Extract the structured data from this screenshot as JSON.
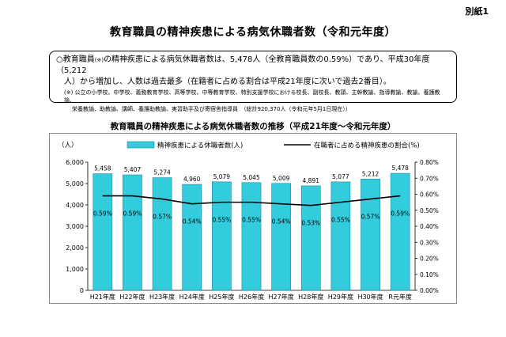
{
  "header": {
    "annex_label": "別紙1",
    "page_title": "教育職員の精神疾患による病気休職者数（令和元年度）"
  },
  "summary": {
    "line1_a": "○教育職員",
    "line1_mark": "(※)",
    "line1_b": "の精神疾患による病気休職者数は、5,478人（全教育職員数の0.59%）であり、平成30年度（5,212",
    "line2": "人）から増加し、人数は過去最多（在籍者に占める割合は平成21年度に次いで過去2番目）。",
    "note1": "(※) 公立の小学校、中学校、義務教育学校、高等学校、中等教育学校、特別支援学校における校長、副校長、教頭、主幹教諭、指導教諭、教諭、養護教諭、",
    "note2": "栄養教諭、助教諭、講師、養護助教諭、実習助手及び寄宿舎指導員　（総計920,370人（令和元年5月1日現在））"
  },
  "chart_data": {
    "type": "bar",
    "title": "教育職員の精神疾患による病気休職者数の推移（平成21年度～令和元年度）",
    "y_unit_label": "（人）",
    "categories": [
      "H21年度",
      "H22年度",
      "H23年度",
      "H24年度",
      "H25年度",
      "H26年度",
      "H27年度",
      "H28年度",
      "H29年度",
      "H30年度",
      "R元年度"
    ],
    "series": [
      {
        "name": "精神疾患による休職者数(人)",
        "kind": "bar",
        "axis": "left",
        "values": [
          5458,
          5407,
          5274,
          4960,
          5079,
          5045,
          5009,
          4891,
          5077,
          5212,
          5478
        ],
        "labels": [
          "5,458",
          "5,407",
          "5,274",
          "4,960",
          "5,079",
          "5,045",
          "5,009",
          "4,891",
          "5,077",
          "5,212",
          "5,478"
        ]
      },
      {
        "name": "在職者に占める精神疾患の割合(%)",
        "kind": "line",
        "axis": "right",
        "values": [
          0.59,
          0.59,
          0.57,
          0.54,
          0.55,
          0.55,
          0.54,
          0.53,
          0.55,
          0.57,
          0.59
        ],
        "labels": [
          "0.59%",
          "0.59%",
          "0.57%",
          "0.54%",
          "0.55%",
          "0.55%",
          "0.54%",
          "0.53%",
          "0.55%",
          "0.57%",
          "0.59%"
        ]
      }
    ],
    "ylim_left": [
      0,
      6000
    ],
    "left_ticks": [
      "0",
      "1,000",
      "2,000",
      "3,000",
      "4,000",
      "5,000",
      "6,000"
    ],
    "ylim_right": [
      0,
      0.8
    ],
    "right_ticks": [
      "0.00%",
      "0.10%",
      "0.20%",
      "0.30%",
      "0.40%",
      "0.50%",
      "0.60%",
      "0.70%",
      "0.80%"
    ],
    "legend_position": "top",
    "colors": {
      "bar_fill": "#33ccdd",
      "bar_stroke": "#1a8a99",
      "line": "#000000"
    }
  }
}
